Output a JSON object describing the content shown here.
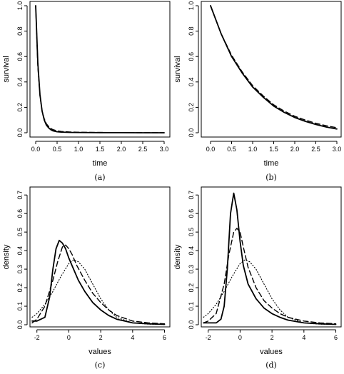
{
  "chart_data": [
    {
      "type": "line",
      "caption": "(a)",
      "xlabel": "time",
      "ylabel": "survival",
      "xlim": [
        0,
        3
      ],
      "ylim": [
        0,
        1
      ],
      "xticks": [
        "0.0",
        "0.5",
        "1.0",
        "1.5",
        "2.0",
        "2.5",
        "3.0"
      ],
      "yticks": [
        "0.0",
        "0.2",
        "0.4",
        "0.6",
        "0.8",
        "1.0"
      ],
      "x": [
        0,
        0.05,
        0.1,
        0.15,
        0.2,
        0.25,
        0.3,
        0.35,
        0.4,
        0.5,
        0.6,
        0.8,
        1.0,
        1.5,
        2.0,
        2.5,
        3.0
      ],
      "series": [
        {
          "style": "solid",
          "values": [
            1.0,
            0.55,
            0.3,
            0.17,
            0.1,
            0.06,
            0.04,
            0.025,
            0.016,
            0.008,
            0.005,
            0.003,
            0.002,
            0.001,
            0.0005,
            0.0002,
            0.0001
          ]
        },
        {
          "style": "dashed",
          "values": [
            1.0,
            0.52,
            0.29,
            0.17,
            0.11,
            0.07,
            0.05,
            0.035,
            0.025,
            0.015,
            0.01,
            0.006,
            0.004,
            0.002,
            0.001,
            0.0005,
            0.0002
          ]
        }
      ]
    },
    {
      "type": "line",
      "caption": "(b)",
      "xlabel": "time",
      "ylabel": "survival",
      "xlim": [
        0,
        3
      ],
      "ylim": [
        0,
        1
      ],
      "xticks": [
        "0.0",
        "0.5",
        "1.0",
        "1.5",
        "2.0",
        "2.5",
        "3.0"
      ],
      "yticks": [
        "0.0",
        "0.2",
        "0.4",
        "0.6",
        "0.8",
        "1.0"
      ],
      "x": [
        0,
        0.25,
        0.5,
        0.75,
        1.0,
        1.25,
        1.5,
        1.75,
        2.0,
        2.25,
        2.5,
        2.75,
        3.0
      ],
      "series": [
        {
          "style": "solid",
          "values": [
            1.0,
            0.78,
            0.6,
            0.47,
            0.36,
            0.28,
            0.21,
            0.16,
            0.12,
            0.09,
            0.065,
            0.045,
            0.03
          ]
        },
        {
          "style": "dashed",
          "values": [
            1.0,
            0.78,
            0.61,
            0.48,
            0.37,
            0.29,
            0.22,
            0.17,
            0.13,
            0.1,
            0.075,
            0.055,
            0.04
          ]
        }
      ]
    },
    {
      "type": "line",
      "caption": "(c)",
      "xlabel": "values",
      "ylabel": "density",
      "xlim": [
        -2.3,
        6.2
      ],
      "ylim": [
        0,
        0.72
      ],
      "xticks": [
        "-2",
        "0",
        "2",
        "4",
        "6"
      ],
      "yticks": [
        "0.0",
        "0.1",
        "0.2",
        "0.3",
        "0.4",
        "0.5",
        "0.6",
        "0.7"
      ],
      "series": [
        {
          "style": "solid",
          "x": [
            -2.3,
            -2.0,
            -1.5,
            -1.2,
            -1.0,
            -0.8,
            -0.6,
            -0.4,
            -0.2,
            0,
            0.3,
            0.6,
            1.0,
            1.5,
            2.0,
            2.5,
            3.0,
            3.5,
            4.0,
            5.0,
            6.0
          ],
          "values": [
            0.02,
            0.02,
            0.04,
            0.15,
            0.3,
            0.41,
            0.455,
            0.44,
            0.41,
            0.36,
            0.3,
            0.24,
            0.18,
            0.12,
            0.08,
            0.05,
            0.03,
            0.02,
            0.01,
            0.005,
            0.002
          ]
        },
        {
          "style": "dashed",
          "x": [
            -2.3,
            -2.0,
            -1.5,
            -1.0,
            -0.7,
            -0.4,
            -0.2,
            0,
            0.2,
            0.5,
            1.0,
            1.5,
            2.0,
            2.5,
            3.0,
            4.0,
            5.0,
            6.0
          ],
          "values": [
            0.01,
            0.03,
            0.1,
            0.24,
            0.34,
            0.42,
            0.43,
            0.41,
            0.38,
            0.32,
            0.24,
            0.17,
            0.12,
            0.08,
            0.05,
            0.02,
            0.01,
            0.005
          ]
        },
        {
          "style": "dotted",
          "x": [
            -2.3,
            -2.0,
            -1.5,
            -1.0,
            -0.5,
            0,
            0.3,
            0.6,
            1.0,
            1.5,
            2.0,
            2.5,
            3.0,
            4.0,
            5.0,
            6.0
          ],
          "values": [
            0.04,
            0.06,
            0.11,
            0.18,
            0.26,
            0.33,
            0.35,
            0.34,
            0.3,
            0.22,
            0.14,
            0.08,
            0.04,
            0.01,
            0.003,
            0.001
          ]
        }
      ]
    },
    {
      "type": "line",
      "caption": "(d)",
      "xlabel": "values",
      "ylabel": "density",
      "xlim": [
        -2.3,
        6.2
      ],
      "ylim": [
        0,
        0.72
      ],
      "xticks": [
        "-2",
        "0",
        "2",
        "4",
        "6"
      ],
      "yticks": [
        "0.0",
        "0.1",
        "0.2",
        "0.3",
        "0.4",
        "0.5",
        "0.6",
        "0.7"
      ],
      "series": [
        {
          "style": "solid",
          "x": [
            -2.3,
            -1.5,
            -1.2,
            -1.0,
            -0.8,
            -0.6,
            -0.4,
            -0.2,
            0,
            0.2,
            0.5,
            1.0,
            1.5,
            2.0,
            2.5,
            3.0,
            4.0,
            5.0,
            6.0
          ],
          "values": [
            0.01,
            0.01,
            0.03,
            0.1,
            0.3,
            0.6,
            0.71,
            0.62,
            0.45,
            0.32,
            0.22,
            0.14,
            0.09,
            0.06,
            0.04,
            0.025,
            0.01,
            0.005,
            0.002
          ]
        },
        {
          "style": "dashed",
          "x": [
            -2.3,
            -2.0,
            -1.5,
            -1.0,
            -0.7,
            -0.4,
            -0.2,
            0,
            0.2,
            0.5,
            1.0,
            1.5,
            2.0,
            2.5,
            3.0,
            4.0,
            5.0,
            6.0
          ],
          "values": [
            0.01,
            0.02,
            0.06,
            0.22,
            0.38,
            0.5,
            0.52,
            0.5,
            0.42,
            0.31,
            0.2,
            0.13,
            0.09,
            0.06,
            0.04,
            0.02,
            0.01,
            0.005
          ]
        },
        {
          "style": "dotted",
          "x": [
            -2.3,
            -2.0,
            -1.5,
            -1.0,
            -0.5,
            0,
            0.3,
            0.6,
            1.0,
            1.5,
            2.0,
            2.5,
            3.0,
            4.0,
            5.0,
            6.0
          ],
          "values": [
            0.04,
            0.06,
            0.11,
            0.18,
            0.26,
            0.33,
            0.35,
            0.34,
            0.3,
            0.22,
            0.14,
            0.08,
            0.04,
            0.01,
            0.003,
            0.001
          ]
        }
      ]
    }
  ]
}
